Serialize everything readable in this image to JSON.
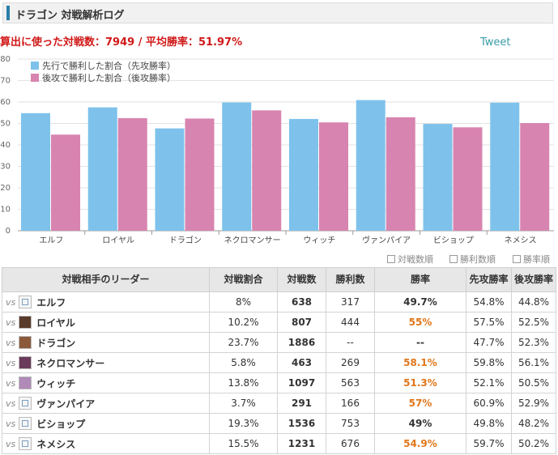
{
  "header": {
    "title": "ドラゴン 対戦解析ログ"
  },
  "summary": {
    "text": "算出に使った対戦数：7949 / 平均勝率：51.97%"
  },
  "tweet": {
    "label": "Tweet"
  },
  "colors": {
    "first": "#7ec2ec",
    "second": "#d884b0",
    "accent_red": "#d01919",
    "orange": "#e0761a"
  },
  "chart_data": {
    "type": "bar",
    "categories": [
      "エルフ",
      "ロイヤル",
      "ドラゴン",
      "ネクロマンサー",
      "ウィッチ",
      "ヴァンパイア",
      "ビショップ",
      "ネメシス"
    ],
    "series": [
      {
        "name": "先行で勝利した割合（先攻勝率）",
        "values": [
          54.8,
          57.5,
          47.7,
          59.8,
          52.1,
          60.9,
          49.8,
          59.7
        ]
      },
      {
        "name": "後攻で勝利した割合（後攻勝率）",
        "values": [
          44.8,
          52.5,
          52.3,
          56.1,
          50.5,
          52.9,
          48.2,
          50.2
        ]
      }
    ],
    "ylim": [
      0,
      80
    ],
    "yticks": [
      0,
      10,
      20,
      30,
      40,
      50,
      60,
      70,
      80
    ],
    "grid": true,
    "legend": "top-left"
  },
  "sort_options": [
    "対戦数順",
    "勝利数順",
    "勝率順"
  ],
  "table": {
    "headers": [
      "対戦相手のリーダー",
      "対戦割合",
      "対戦数",
      "勝利数",
      "勝率",
      "先攻勝率",
      "後攻勝率"
    ],
    "vs_label": "vs",
    "rows": [
      {
        "leader": "エルフ",
        "share": "8%",
        "games": "638",
        "wins": "317",
        "winrate": "49.7%",
        "first": "54.8%",
        "second": "44.8%",
        "hot": false,
        "icon": "broken-image-icon"
      },
      {
        "leader": "ロイヤル",
        "share": "10.2%",
        "games": "807",
        "wins": "444",
        "winrate": "55%",
        "first": "57.5%",
        "second": "52.5%",
        "hot": true,
        "icon": "royal-leader-icon"
      },
      {
        "leader": "ドラゴン",
        "share": "23.7%",
        "games": "1886",
        "wins": "--",
        "winrate": "--",
        "first": "47.7%",
        "second": "52.3%",
        "hot": false,
        "icon": "dragon-leader-icon"
      },
      {
        "leader": "ネクロマンサー",
        "share": "5.8%",
        "games": "463",
        "wins": "269",
        "winrate": "58.1%",
        "first": "59.8%",
        "second": "56.1%",
        "hot": true,
        "icon": "necromancer-leader-icon"
      },
      {
        "leader": "ウィッチ",
        "share": "13.8%",
        "games": "1097",
        "wins": "563",
        "winrate": "51.3%",
        "first": "52.1%",
        "second": "50.5%",
        "hot": true,
        "icon": "witch-leader-icon"
      },
      {
        "leader": "ヴァンパイア",
        "share": "3.7%",
        "games": "291",
        "wins": "166",
        "winrate": "57%",
        "first": "60.9%",
        "second": "52.9%",
        "hot": true,
        "icon": "broken-image-icon"
      },
      {
        "leader": "ビショップ",
        "share": "19.3%",
        "games": "1536",
        "wins": "753",
        "winrate": "49%",
        "first": "49.8%",
        "second": "48.2%",
        "hot": false,
        "icon": "broken-image-icon"
      },
      {
        "leader": "ネメシス",
        "share": "15.5%",
        "games": "1231",
        "wins": "676",
        "winrate": "54.9%",
        "first": "59.7%",
        "second": "50.2%",
        "hot": true,
        "icon": "broken-image-icon"
      }
    ]
  }
}
